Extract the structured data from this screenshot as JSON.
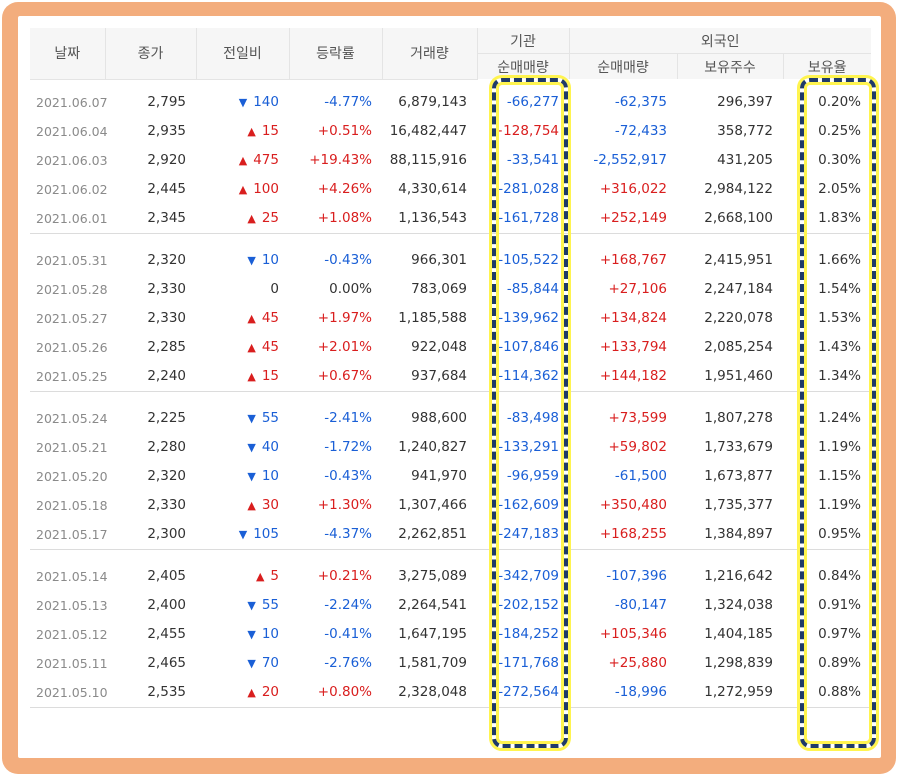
{
  "header": {
    "date": "날짜",
    "close": "종가",
    "diff": "전일비",
    "rate": "등락률",
    "volume": "거래량",
    "institution_group": "기관",
    "foreign_group": "외국인",
    "inst_net": "순매매량",
    "foreign_net": "순매매량",
    "foreign_holdings": "보유주수",
    "foreign_ratio": "보유율"
  },
  "colors": {
    "up": "#d91e1e",
    "down": "#1a5fd6",
    "frame": "#f3ad7d",
    "highlight": "#fff44f"
  },
  "groups": [
    [
      {
        "date": "2021.06.07",
        "close": "2,795",
        "dir": "down",
        "diff": "140",
        "rate": "-4.77%",
        "volume": "6,879,143",
        "inst": "-66,277",
        "fnet": "-62,375",
        "fhold": "296,397",
        "fratio": "0.20%"
      },
      {
        "date": "2021.06.04",
        "close": "2,935",
        "dir": "up",
        "diff": "15",
        "rate": "+0.51%",
        "volume": "16,482,447",
        "inst": "+128,754",
        "fnet": "-72,433",
        "fhold": "358,772",
        "fratio": "0.25%"
      },
      {
        "date": "2021.06.03",
        "close": "2,920",
        "dir": "up",
        "diff": "475",
        "rate": "+19.43%",
        "volume": "88,115,916",
        "inst": "-33,541",
        "fnet": "-2,552,917",
        "fhold": "431,205",
        "fratio": "0.30%"
      },
      {
        "date": "2021.06.02",
        "close": "2,445",
        "dir": "up",
        "diff": "100",
        "rate": "+4.26%",
        "volume": "4,330,614",
        "inst": "-281,028",
        "fnet": "+316,022",
        "fhold": "2,984,122",
        "fratio": "2.05%"
      },
      {
        "date": "2021.06.01",
        "close": "2,345",
        "dir": "up",
        "diff": "25",
        "rate": "+1.08%",
        "volume": "1,136,543",
        "inst": "-161,728",
        "fnet": "+252,149",
        "fhold": "2,668,100",
        "fratio": "1.83%"
      }
    ],
    [
      {
        "date": "2021.05.31",
        "close": "2,320",
        "dir": "down",
        "diff": "10",
        "rate": "-0.43%",
        "volume": "966,301",
        "inst": "-105,522",
        "fnet": "+168,767",
        "fhold": "2,415,951",
        "fratio": "1.66%"
      },
      {
        "date": "2021.05.28",
        "close": "2,330",
        "dir": "none",
        "diff": "0",
        "rate": "0.00%",
        "volume": "783,069",
        "inst": "-85,844",
        "fnet": "+27,106",
        "fhold": "2,247,184",
        "fratio": "1.54%"
      },
      {
        "date": "2021.05.27",
        "close": "2,330",
        "dir": "up",
        "diff": "45",
        "rate": "+1.97%",
        "volume": "1,185,588",
        "inst": "-139,962",
        "fnet": "+134,824",
        "fhold": "2,220,078",
        "fratio": "1.53%"
      },
      {
        "date": "2021.05.26",
        "close": "2,285",
        "dir": "up",
        "diff": "45",
        "rate": "+2.01%",
        "volume": "922,048",
        "inst": "-107,846",
        "fnet": "+133,794",
        "fhold": "2,085,254",
        "fratio": "1.43%"
      },
      {
        "date": "2021.05.25",
        "close": "2,240",
        "dir": "up",
        "diff": "15",
        "rate": "+0.67%",
        "volume": "937,684",
        "inst": "-114,362",
        "fnet": "+144,182",
        "fhold": "1,951,460",
        "fratio": "1.34%"
      }
    ],
    [
      {
        "date": "2021.05.24",
        "close": "2,225",
        "dir": "down",
        "diff": "55",
        "rate": "-2.41%",
        "volume": "988,600",
        "inst": "-83,498",
        "fnet": "+73,599",
        "fhold": "1,807,278",
        "fratio": "1.24%"
      },
      {
        "date": "2021.05.21",
        "close": "2,280",
        "dir": "down",
        "diff": "40",
        "rate": "-1.72%",
        "volume": "1,240,827",
        "inst": "-133,291",
        "fnet": "+59,802",
        "fhold": "1,733,679",
        "fratio": "1.19%"
      },
      {
        "date": "2021.05.20",
        "close": "2,320",
        "dir": "down",
        "diff": "10",
        "rate": "-0.43%",
        "volume": "941,970",
        "inst": "-96,959",
        "fnet": "-61,500",
        "fhold": "1,673,877",
        "fratio": "1.15%"
      },
      {
        "date": "2021.05.18",
        "close": "2,330",
        "dir": "up",
        "diff": "30",
        "rate": "+1.30%",
        "volume": "1,307,466",
        "inst": "-162,609",
        "fnet": "+350,480",
        "fhold": "1,735,377",
        "fratio": "1.19%"
      },
      {
        "date": "2021.05.17",
        "close": "2,300",
        "dir": "down",
        "diff": "105",
        "rate": "-4.37%",
        "volume": "2,262,851",
        "inst": "-247,183",
        "fnet": "+168,255",
        "fhold": "1,384,897",
        "fratio": "0.95%"
      }
    ],
    [
      {
        "date": "2021.05.14",
        "close": "2,405",
        "dir": "up",
        "diff": "5",
        "rate": "+0.21%",
        "volume": "3,275,089",
        "inst": "-342,709",
        "fnet": "-107,396",
        "fhold": "1,216,642",
        "fratio": "0.84%"
      },
      {
        "date": "2021.05.13",
        "close": "2,400",
        "dir": "down",
        "diff": "55",
        "rate": "-2.24%",
        "volume": "2,264,541",
        "inst": "-202,152",
        "fnet": "-80,147",
        "fhold": "1,324,038",
        "fratio": "0.91%"
      },
      {
        "date": "2021.05.12",
        "close": "2,455",
        "dir": "down",
        "diff": "10",
        "rate": "-0.41%",
        "volume": "1,647,195",
        "inst": "-184,252",
        "fnet": "+105,346",
        "fhold": "1,404,185",
        "fratio": "0.97%"
      },
      {
        "date": "2021.05.11",
        "close": "2,465",
        "dir": "down",
        "diff": "70",
        "rate": "-2.76%",
        "volume": "1,581,709",
        "inst": "-171,768",
        "fnet": "+25,880",
        "fhold": "1,298,839",
        "fratio": "0.89%"
      },
      {
        "date": "2021.05.10",
        "close": "2,535",
        "dir": "up",
        "diff": "20",
        "rate": "+0.80%",
        "volume": "2,328,048",
        "inst": "-272,564",
        "fnet": "-18,996",
        "fhold": "1,272,959",
        "fratio": "0.88%"
      }
    ]
  ]
}
